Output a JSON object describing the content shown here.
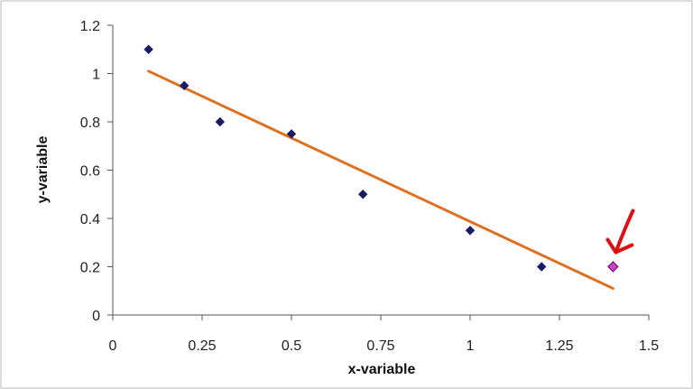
{
  "chart_data": {
    "type": "scatter",
    "title": "",
    "xlabel": "x-variable",
    "ylabel": "y-variable",
    "xlim": [
      0,
      1.5
    ],
    "ylim": [
      0,
      1.2
    ],
    "x_ticks": [
      "0",
      "0.25",
      "0.5",
      "0.75",
      "1",
      "1.25",
      "1.5"
    ],
    "x_tick_values": [
      0,
      0.25,
      0.5,
      0.75,
      1,
      1.25,
      1.5
    ],
    "y_ticks": [
      "0",
      "0.2",
      "0.4",
      "0.6",
      "0.8",
      "1",
      "1.2"
    ],
    "y_tick_values": [
      0,
      0.2,
      0.4,
      0.6,
      0.8,
      1,
      1.2
    ],
    "grid": false,
    "legend": "none",
    "series": [
      {
        "points": [
          {
            "x": 0.1,
            "y": 1.1
          },
          {
            "x": 0.2,
            "y": 0.95
          },
          {
            "x": 0.3,
            "y": 0.8
          },
          {
            "x": 0.5,
            "y": 0.75
          },
          {
            "x": 0.7,
            "y": 0.5
          },
          {
            "x": 1.0,
            "y": 0.35
          },
          {
            "x": 1.2,
            "y": 0.2
          }
        ],
        "marker": "diamond",
        "color": "#1a1a66"
      },
      {
        "points": [
          {
            "x": 1.4,
            "y": 0.2
          }
        ],
        "marker": "diamond",
        "color": "#cc44cc",
        "edge_color": "#660066"
      }
    ],
    "trendline": {
      "x": [
        0.1,
        1.4
      ],
      "y": [
        1.01,
        0.11
      ],
      "color": "#e07020"
    },
    "annotation": {
      "type": "arrow",
      "points_to": {
        "x": 1.4,
        "y": 0.2
      },
      "color": "#dd1111"
    }
  }
}
